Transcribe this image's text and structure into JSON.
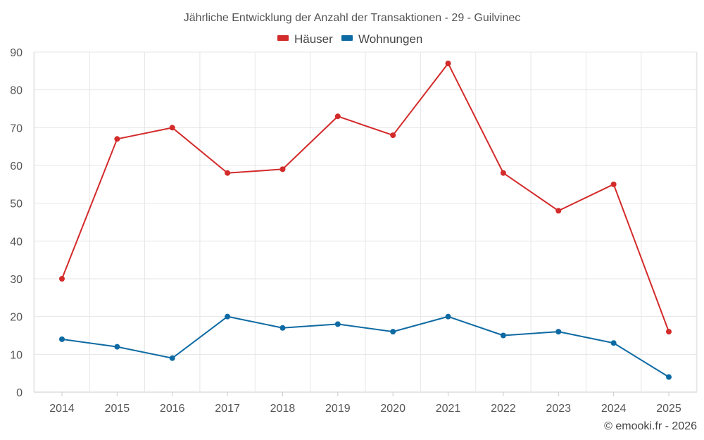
{
  "chart_data": {
    "type": "line",
    "title": "Jährliche Entwicklung der Anzahl der Transaktionen - 29 - Guilvinec",
    "categories": [
      "2014",
      "2015",
      "2016",
      "2017",
      "2018",
      "2019",
      "2020",
      "2021",
      "2022",
      "2023",
      "2024",
      "2025"
    ],
    "series": [
      {
        "name": "Häuser",
        "color": "#d32a2a",
        "values": [
          30,
          67,
          70,
          58,
          59,
          73,
          68,
          87,
          58,
          48,
          55,
          16
        ]
      },
      {
        "name": "Wohnungen",
        "color": "#0e6aa3",
        "values": [
          14,
          12,
          9,
          20,
          17,
          18,
          16,
          20,
          15,
          16,
          13,
          4
        ]
      }
    ],
    "ylim": [
      0,
      90
    ],
    "yticks": [
      0,
      10,
      20,
      30,
      40,
      50,
      60,
      70,
      80,
      90
    ],
    "grid": true,
    "legend": "top-center",
    "xlabel": "",
    "ylabel": ""
  },
  "credit": "© emooki.fr - 2026"
}
